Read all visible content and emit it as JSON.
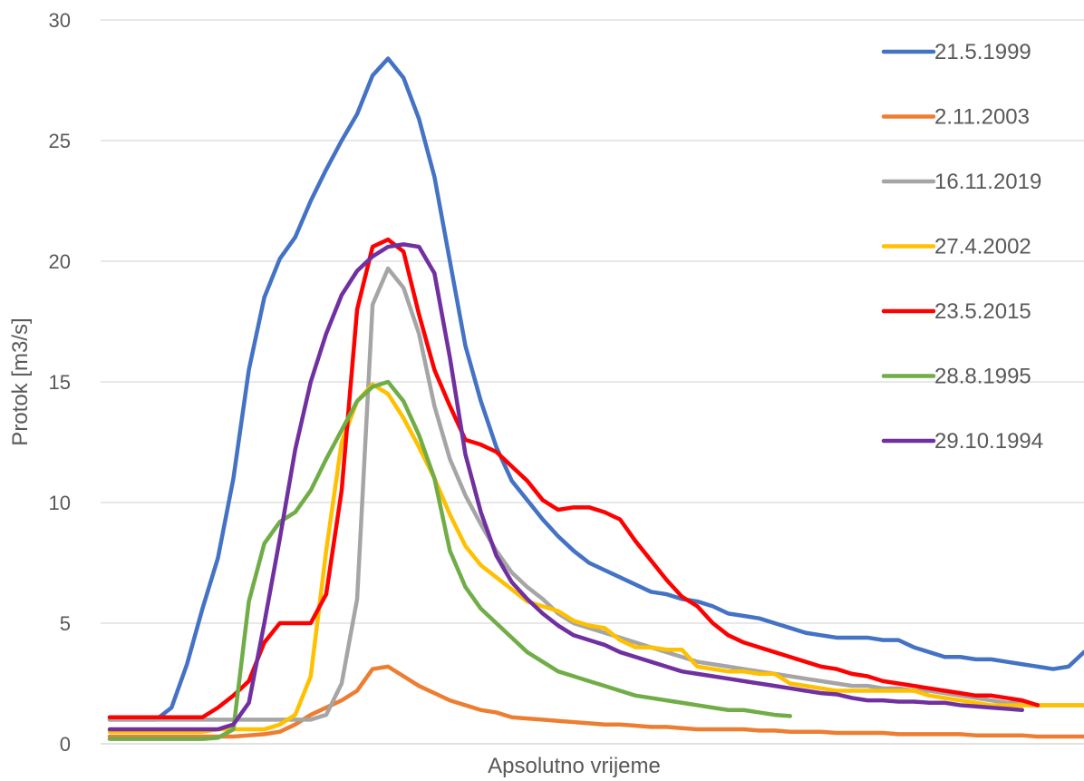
{
  "chart_data": {
    "type": "line",
    "title": "",
    "xlabel": "Apsolutno vrijeme",
    "ylabel": "Protok [m3/s]",
    "ylim": [
      0,
      30
    ],
    "yticks": [
      0,
      5,
      10,
      15,
      20,
      25,
      30
    ],
    "grid": true,
    "legend_position": "right",
    "x_step": 1,
    "x_count": 64,
    "series": [
      {
        "name": "21.5.1999",
        "color": "#4472C4",
        "values": [
          1.0,
          1.0,
          1.0,
          1.0,
          1.5,
          3.3,
          5.6,
          7.7,
          11.0,
          15.5,
          18.5,
          20.1,
          21.0,
          22.5,
          23.8,
          25.0,
          26.1,
          27.7,
          28.4,
          27.6,
          25.9,
          23.5,
          20.0,
          16.5,
          14.2,
          12.3,
          10.9,
          10.1,
          9.3,
          8.6,
          8.0,
          7.5,
          7.2,
          6.9,
          6.6,
          6.3,
          6.2,
          6.0,
          5.9,
          5.7,
          5.4,
          5.3,
          5.2,
          5.0,
          4.8,
          4.6,
          4.5,
          4.4,
          4.4,
          4.4,
          4.3,
          4.3,
          4.0,
          3.8,
          3.6,
          3.6,
          3.5,
          3.5,
          3.4,
          3.3,
          3.2,
          3.1,
          3.2,
          3.8
        ]
      },
      {
        "name": "2.11.2003",
        "color": "#ED7D31",
        "values": [
          0.3,
          0.3,
          0.3,
          0.3,
          0.3,
          0.3,
          0.3,
          0.3,
          0.3,
          0.35,
          0.4,
          0.5,
          0.8,
          1.2,
          1.5,
          1.8,
          2.2,
          3.1,
          3.2,
          2.8,
          2.4,
          2.1,
          1.8,
          1.6,
          1.4,
          1.3,
          1.1,
          1.05,
          1.0,
          0.95,
          0.9,
          0.85,
          0.8,
          0.8,
          0.75,
          0.7,
          0.7,
          0.65,
          0.6,
          0.6,
          0.6,
          0.6,
          0.55,
          0.55,
          0.5,
          0.5,
          0.5,
          0.45,
          0.45,
          0.45,
          0.45,
          0.4,
          0.4,
          0.4,
          0.4,
          0.4,
          0.35,
          0.35,
          0.35,
          0.35,
          0.3,
          0.3,
          0.3,
          0.3
        ]
      },
      {
        "name": "16.11.2019",
        "color": "#A5A5A5",
        "values": [
          1.0,
          1.0,
          1.0,
          1.0,
          1.0,
          1.0,
          1.0,
          1.0,
          1.0,
          1.0,
          1.0,
          1.0,
          1.0,
          1.0,
          1.2,
          2.5,
          6.0,
          18.2,
          19.7,
          18.9,
          17.0,
          14.0,
          11.8,
          10.3,
          9.1,
          8.0,
          7.1,
          6.5,
          6.0,
          5.4,
          5.0,
          4.8,
          4.6,
          4.4,
          4.2,
          4.0,
          3.8,
          3.6,
          3.4,
          3.3,
          3.2,
          3.1,
          3.0,
          2.9,
          2.8,
          2.7,
          2.6,
          2.5,
          2.4,
          2.4,
          2.3,
          2.3,
          2.2,
          2.2,
          2.1,
          2.0,
          1.9,
          1.8,
          1.7,
          1.7,
          1.6,
          1.6,
          1.6,
          1.6
        ]
      },
      {
        "name": "27.4.2002",
        "color": "#FFC000",
        "values": [
          0.5,
          0.5,
          0.5,
          0.5,
          0.5,
          0.5,
          0.5,
          0.6,
          0.6,
          0.6,
          0.6,
          0.8,
          1.2,
          2.8,
          8.0,
          12.5,
          14.2,
          14.9,
          14.5,
          13.5,
          12.3,
          11.0,
          9.5,
          8.2,
          7.4,
          6.9,
          6.4,
          5.9,
          5.7,
          5.5,
          5.1,
          4.9,
          4.8,
          4.3,
          4.0,
          4.0,
          3.9,
          3.9,
          3.2,
          3.1,
          3.0,
          3.0,
          2.9,
          2.9,
          2.5,
          2.4,
          2.3,
          2.2,
          2.2,
          2.2,
          2.2,
          2.2,
          2.2,
          2.0,
          1.9,
          1.8,
          1.7,
          1.6,
          1.6,
          1.6,
          1.6,
          1.6,
          1.6,
          1.6
        ]
      },
      {
        "name": "23.5.2015",
        "color": "#FF0000",
        "values": [
          1.1,
          1.1,
          1.1,
          1.1,
          1.1,
          1.1,
          1.1,
          1.5,
          2.0,
          2.6,
          4.2,
          5.0,
          5.0,
          5.0,
          6.2,
          10.5,
          18.0,
          20.6,
          20.9,
          20.4,
          17.8,
          15.5,
          14.0,
          12.6,
          12.4,
          12.1,
          11.5,
          10.9,
          10.1,
          9.7,
          9.8,
          9.8,
          9.6,
          9.3,
          8.4,
          7.6,
          6.8,
          6.1,
          5.7,
          5.0,
          4.5,
          4.2,
          4.0,
          3.8,
          3.6,
          3.4,
          3.2,
          3.1,
          2.9,
          2.8,
          2.6,
          2.5,
          2.4,
          2.3,
          2.2,
          2.1,
          2.0,
          2.0,
          1.9,
          1.8,
          1.6
        ]
      },
      {
        "name": "28.8.1995",
        "color": "#70AD47",
        "values": [
          0.2,
          0.2,
          0.2,
          0.2,
          0.2,
          0.2,
          0.2,
          0.25,
          0.6,
          5.9,
          8.3,
          9.2,
          9.6,
          10.5,
          11.8,
          13.0,
          14.2,
          14.8,
          15.0,
          14.2,
          12.8,
          11.0,
          8.0,
          6.5,
          5.6,
          5.0,
          4.4,
          3.8,
          3.4,
          3.0,
          2.8,
          2.6,
          2.4,
          2.2,
          2.0,
          1.9,
          1.8,
          1.7,
          1.6,
          1.5,
          1.4,
          1.4,
          1.3,
          1.2,
          1.15
        ]
      },
      {
        "name": "29.10.1994",
        "color": "#7030A0",
        "values": [
          0.6,
          0.6,
          0.6,
          0.6,
          0.6,
          0.6,
          0.6,
          0.6,
          0.8,
          1.7,
          5.0,
          8.5,
          12.2,
          15.0,
          17.0,
          18.6,
          19.6,
          20.2,
          20.6,
          20.7,
          20.6,
          19.5,
          16.0,
          12.0,
          9.6,
          7.8,
          6.7,
          6.0,
          5.4,
          4.9,
          4.5,
          4.3,
          4.1,
          3.8,
          3.6,
          3.4,
          3.2,
          3.0,
          2.9,
          2.8,
          2.7,
          2.6,
          2.5,
          2.4,
          2.3,
          2.2,
          2.1,
          2.05,
          1.9,
          1.8,
          1.8,
          1.75,
          1.75,
          1.7,
          1.7,
          1.6,
          1.55,
          1.5,
          1.45,
          1.4
        ]
      }
    ]
  }
}
